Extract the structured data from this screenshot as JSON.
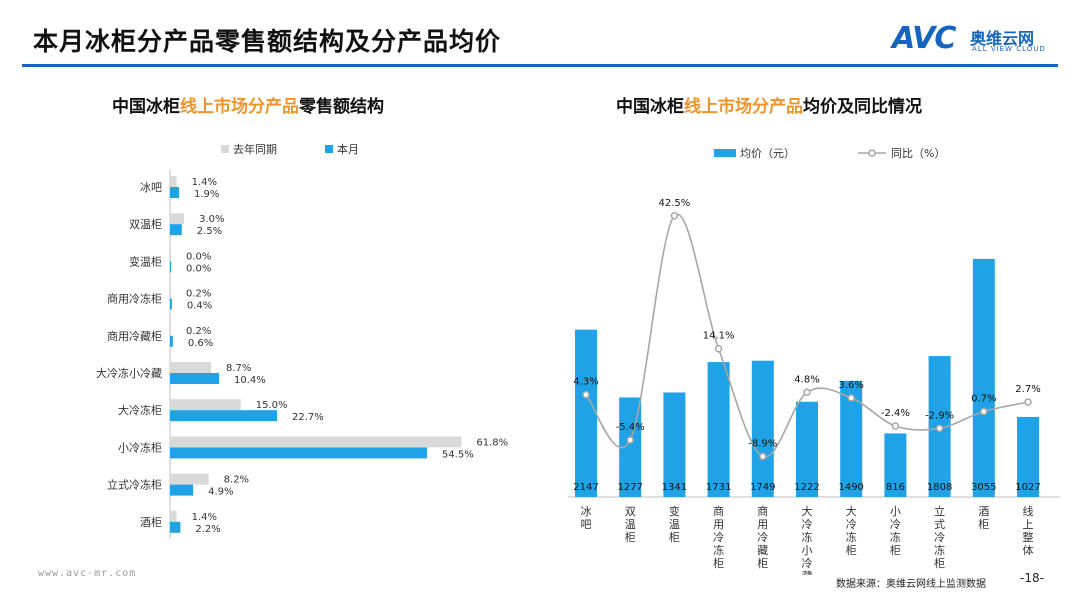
{
  "page": {
    "title": "本月冰柜分产品零售额结构及分产品均价",
    "logo_text": "AVC",
    "logo_cn": "奥维云网",
    "logo_en": "ALL VIEW CLOUD",
    "footer_url": "www.avc-mr.com",
    "source": "数据来源：奥维云网线上监测数据",
    "page_number": "-18-"
  },
  "colors": {
    "current": "#1fa3e6",
    "prior": "#d9d9d9",
    "line": "#a6a6a6",
    "accent": "#f0932b",
    "brand": "#1565c0"
  },
  "chart_data": [
    {
      "type": "bar",
      "orientation": "horizontal",
      "title_parts": [
        "中国冰柜",
        "线上市场分产品",
        "零售额结构"
      ],
      "categories": [
        "冰吧",
        "双温柜",
        "变温柜",
        "商用冷冻柜",
        "商用冷藏柜",
        "大冷冻小冷藏",
        "大冷冻柜",
        "小冷冻柜",
        "立式冷冻柜",
        "酒柜"
      ],
      "series": [
        {
          "name": "去年同期",
          "values": [
            1.4,
            3.0,
            0.0,
            0.2,
            0.2,
            8.7,
            15.0,
            61.8,
            8.2,
            1.4
          ],
          "labels": [
            "1.4%",
            "3.0%",
            "0.0%",
            "0.2%",
            "0.2%",
            "8.7%",
            "15.0%",
            "61.8%",
            "8.2%",
            "1.4%"
          ]
        },
        {
          "name": "本月",
          "values": [
            1.9,
            2.5,
            0.0,
            0.4,
            0.6,
            10.4,
            22.7,
            54.5,
            4.9,
            2.2
          ],
          "labels": [
            "1.9%",
            "2.5%",
            "0.0%",
            "0.4%",
            "0.6%",
            "10.4%",
            "22.7%",
            "54.5%",
            "4.9%",
            "2.2%"
          ]
        }
      ],
      "unit": "%",
      "xlim": [
        0,
        70
      ],
      "legend_position": "top"
    },
    {
      "type": "bar+line",
      "title_parts": [
        "中国冰柜",
        "线上市场分产品",
        "均价及同比情况"
      ],
      "categories": [
        "冰吧",
        "双温柜",
        "变温柜",
        "商用冷冻柜",
        "商用冷藏柜",
        "大冷冻小冷藏",
        "大冷冻柜",
        "小冷冻柜",
        "立式冷冻柜",
        "酒柜",
        "线上整体"
      ],
      "bar_series": {
        "name": "均价（元）",
        "values": [
          2147,
          1277,
          1341,
          1731,
          1749,
          1222,
          1490,
          816,
          1808,
          3055,
          1027
        ]
      },
      "line_series": {
        "name": "同比（%）",
        "values": [
          4.3,
          -5.4,
          42.5,
          14.1,
          -8.9,
          4.8,
          3.6,
          -2.4,
          -2.9,
          0.7,
          2.7
        ],
        "labels": [
          "4.3%",
          "-5.4%",
          "42.5%",
          "14.1%",
          "-8.9%",
          "4.8%",
          "3.6%",
          "-2.4%",
          "-2.9%",
          "0.7%",
          "2.7%"
        ]
      },
      "bar_ylim": [
        0,
        3400
      ],
      "line_ylim": [
        -15,
        48
      ],
      "legend_position": "top"
    }
  ]
}
